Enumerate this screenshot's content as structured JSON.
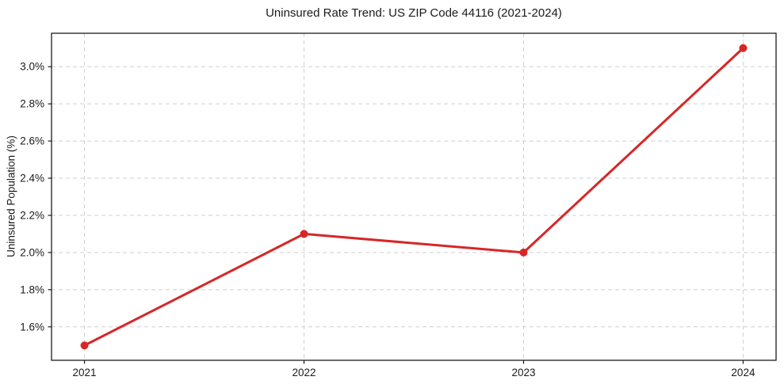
{
  "chart_data": {
    "type": "line",
    "title": "Uninsured Rate Trend: US ZIP Code 44116 (2021-2024)",
    "xlabel": "",
    "ylabel": "Uninsured Population (%)",
    "x": [
      2021,
      2022,
      2023,
      2024
    ],
    "x_labels": [
      "2021",
      "2022",
      "2023",
      "2024"
    ],
    "series": [
      {
        "name": "Uninsured Rate",
        "values": [
          1.5,
          2.1,
          2.0,
          3.1
        ],
        "color": "#d62728"
      }
    ],
    "ytick_values": [
      1.6,
      1.8,
      2.0,
      2.2,
      2.4,
      2.6,
      2.8,
      3.0
    ],
    "ytick_labels": [
      "1.6%",
      "1.8%",
      "2.0%",
      "2.2%",
      "2.4%",
      "2.6%",
      "2.8%",
      "3.0%"
    ],
    "xlim": [
      2020.85,
      2024.15
    ],
    "ylim": [
      1.42,
      3.18
    ],
    "grid": true,
    "grid_style": "dashed",
    "legend_position": "none",
    "colors": {
      "line": "#d62728",
      "grid": "#cfcfcf",
      "spine": "#1c1c1c",
      "text": "#1a1a1a",
      "background": "#ffffff"
    }
  }
}
